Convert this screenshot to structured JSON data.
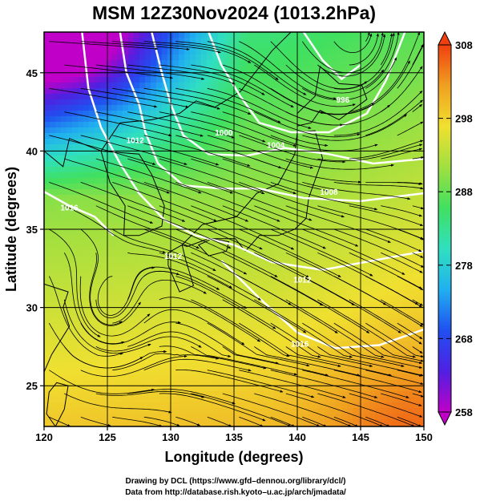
{
  "title": "MSM 12Z30Nov2024 (1013.2hPa)",
  "xlabel": "Longitude (degrees)",
  "ylabel": "Latitude  (degrees)",
  "credits": [
    "Drawing by DCL (https://www.gfd–dennou.org/library/dcl/)",
    "Data from http://database.rish.kyoto–u.ac.jp/arch/jmadata/"
  ],
  "chart_data": {
    "type": "heatmap",
    "xlim": [
      120,
      150
    ],
    "ylim": [
      22.4,
      47.6
    ],
    "x_ticks": [
      120,
      125,
      130,
      135,
      140,
      145,
      150
    ],
    "y_ticks": [
      25,
      30,
      35,
      40,
      45
    ],
    "grid": true,
    "colorbar": {
      "min": 258,
      "max": 308,
      "ticks": [
        258,
        268,
        278,
        288,
        298,
        308
      ],
      "colors": [
        "#c000c8",
        "#5020e0",
        "#2050f0",
        "#20b0f0",
        "#30e0c0",
        "#40e060",
        "#a0e040",
        "#f0e030",
        "#f0a020",
        "#f04010"
      ]
    },
    "contour_labels": [
      {
        "text": "996",
        "lon": 143.6,
        "lat": 43.1
      },
      {
        "text": "1000",
        "lon": 134.2,
        "lat": 41.0
      },
      {
        "text": "1004",
        "lon": 138.3,
        "lat": 40.2
      },
      {
        "text": "1008",
        "lon": 142.5,
        "lat": 37.2
      },
      {
        "text": "1012",
        "lon": 127.2,
        "lat": 40.5
      },
      {
        "text": "1016",
        "lon": 122.0,
        "lat": 36.2
      },
      {
        "text": "1012",
        "lon": 130.2,
        "lat": 33.1
      },
      {
        "text": "1012",
        "lon": 140.4,
        "lat": 31.6
      },
      {
        "text": "1016",
        "lon": 140.2,
        "lat": 27.5
      }
    ]
  }
}
